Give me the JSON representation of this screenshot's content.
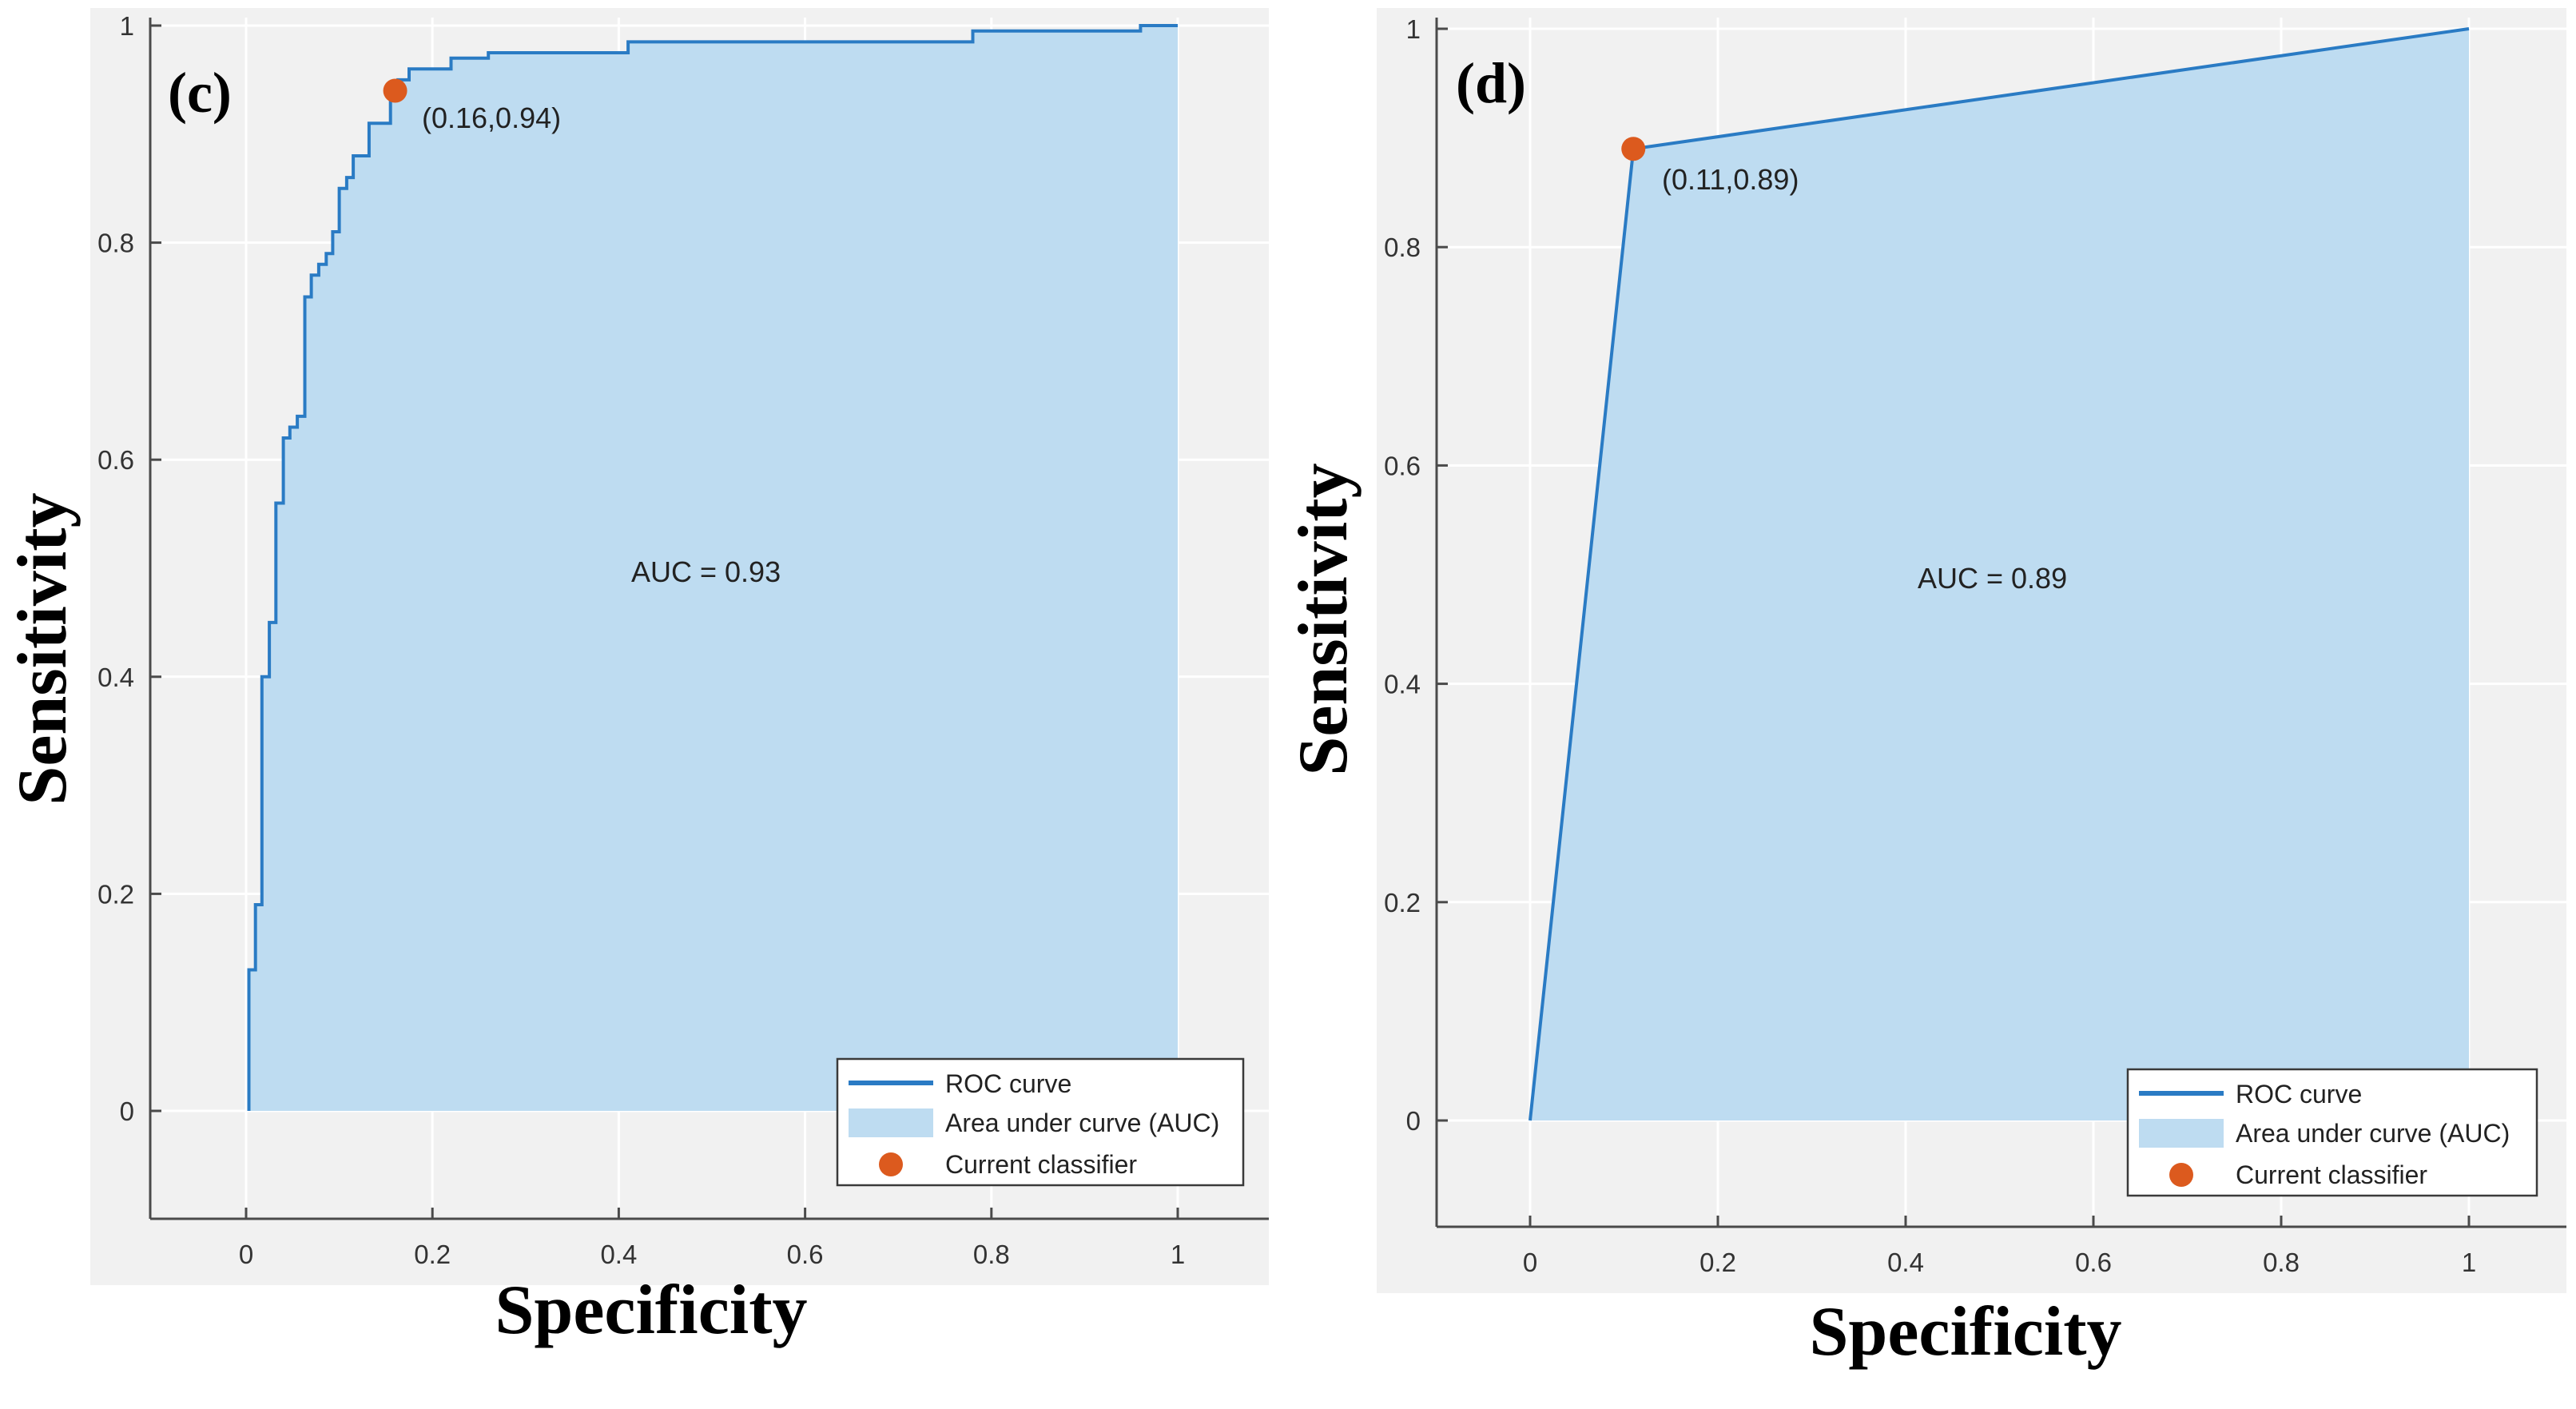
{
  "colors": {
    "curve": "#2a7bc4",
    "fill": "#bedcf1",
    "point": "#dc5a1e",
    "plot_bg": "#f1f1f1",
    "grid": "#ffffff"
  },
  "legend": {
    "roc": "ROC curve",
    "auc": "Area under curve (AUC)",
    "classifier": "Current classifier"
  },
  "chart_data": [
    {
      "type": "line",
      "panel": "(c)",
      "xlabel": "Specificity",
      "ylabel": "Sensitivity",
      "xlim": [
        -0.1,
        1.1
      ],
      "ylim": [
        -0.1,
        1.0
      ],
      "xticks": [
        "0",
        "0.2",
        "0.4",
        "0.6",
        "0.8",
        "1"
      ],
      "yticks": [
        "0",
        "0.2",
        "0.4",
        "0.6",
        "0.8",
        "1"
      ],
      "auc_text": "AUC = 0.93",
      "classifier_label": "(0.16,0.94)",
      "classifier_point": [
        0.16,
        0.94
      ],
      "roc": [
        [
          0.003,
          0.0
        ],
        [
          0.003,
          0.13
        ],
        [
          0.01,
          0.13
        ],
        [
          0.01,
          0.19
        ],
        [
          0.017,
          0.19
        ],
        [
          0.017,
          0.4
        ],
        [
          0.025,
          0.4
        ],
        [
          0.025,
          0.45
        ],
        [
          0.032,
          0.45
        ],
        [
          0.032,
          0.56
        ],
        [
          0.04,
          0.56
        ],
        [
          0.04,
          0.62
        ],
        [
          0.047,
          0.62
        ],
        [
          0.047,
          0.63
        ],
        [
          0.055,
          0.63
        ],
        [
          0.055,
          0.64
        ],
        [
          0.063,
          0.64
        ],
        [
          0.063,
          0.75
        ],
        [
          0.07,
          0.75
        ],
        [
          0.07,
          0.77
        ],
        [
          0.078,
          0.77
        ],
        [
          0.078,
          0.78
        ],
        [
          0.086,
          0.78
        ],
        [
          0.086,
          0.79
        ],
        [
          0.093,
          0.79
        ],
        [
          0.093,
          0.81
        ],
        [
          0.1,
          0.81
        ],
        [
          0.1,
          0.85
        ],
        [
          0.108,
          0.85
        ],
        [
          0.108,
          0.86
        ],
        [
          0.115,
          0.86
        ],
        [
          0.115,
          0.88
        ],
        [
          0.123,
          0.88
        ],
        [
          0.123,
          0.88
        ],
        [
          0.132,
          0.88
        ],
        [
          0.132,
          0.91
        ],
        [
          0.155,
          0.91
        ],
        [
          0.155,
          0.94
        ],
        [
          0.163,
          0.94
        ],
        [
          0.163,
          0.95
        ],
        [
          0.175,
          0.95
        ],
        [
          0.175,
          0.96
        ],
        [
          0.22,
          0.96
        ],
        [
          0.22,
          0.97
        ],
        [
          0.26,
          0.97
        ],
        [
          0.26,
          0.975
        ],
        [
          0.41,
          0.975
        ],
        [
          0.41,
          0.985
        ],
        [
          0.78,
          0.985
        ],
        [
          0.78,
          0.995
        ],
        [
          0.96,
          0.995
        ],
        [
          0.96,
          1.0
        ],
        [
          1.0,
          1.0
        ]
      ]
    },
    {
      "type": "line",
      "panel": "(d)",
      "xlabel": "Specificity",
      "ylabel": "Sensitivity",
      "xlim": [
        -0.1,
        1.1
      ],
      "ylim": [
        -0.1,
        1.0
      ],
      "xticks": [
        "0",
        "0.2",
        "0.4",
        "0.6",
        "0.8",
        "1"
      ],
      "yticks": [
        "0",
        "0.2",
        "0.4",
        "0.6",
        "0.8",
        "1"
      ],
      "auc_text": "AUC = 0.89",
      "classifier_label": "(0.11,0.89)",
      "classifier_point": [
        0.11,
        0.89
      ],
      "roc": [
        [
          0.0,
          0.0
        ],
        [
          0.11,
          0.89
        ],
        [
          1.0,
          1.0
        ]
      ]
    }
  ]
}
